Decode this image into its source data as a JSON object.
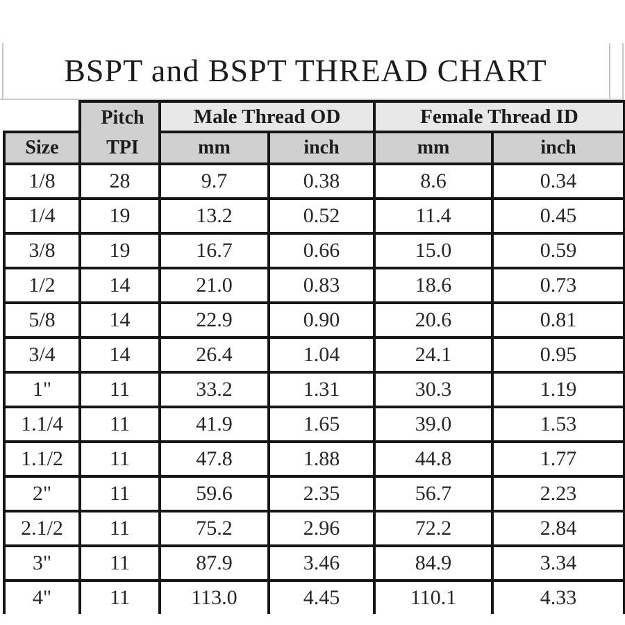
{
  "page": {
    "title": "BSPT and BSPT THREAD CHART"
  },
  "colors": {
    "table_border": "#161616",
    "group_header_bg": "#e7e7e7",
    "sub_header_bg": "#d0d0d0",
    "grid_remnant_gray": "#c6c6c6",
    "data_bg": "#ffffff"
  },
  "table": {
    "header": {
      "size_label": "Size",
      "pitch_line1": "Pitch",
      "pitch_line2": "TPI",
      "male_group": "Male Thread OD",
      "female_group": "Female Thread ID",
      "male_mm": "mm",
      "male_inch": "inch",
      "female_mm": "mm",
      "female_inch": "inch"
    },
    "rows": [
      {
        "size": "1/8",
        "tpi": "28",
        "male_mm": "9.7",
        "male_inch": "0.38",
        "female_mm": "8.6",
        "female_inch": "0.34"
      },
      {
        "size": "1/4",
        "tpi": "19",
        "male_mm": "13.2",
        "male_inch": "0.52",
        "female_mm": "11.4",
        "female_inch": "0.45"
      },
      {
        "size": "3/8",
        "tpi": "19",
        "male_mm": "16.7",
        "male_inch": "0.66",
        "female_mm": "15.0",
        "female_inch": "0.59"
      },
      {
        "size": "1/2",
        "tpi": "14",
        "male_mm": "21.0",
        "male_inch": "0.83",
        "female_mm": "18.6",
        "female_inch": "0.73"
      },
      {
        "size": "5/8",
        "tpi": "14",
        "male_mm": "22.9",
        "male_inch": "0.90",
        "female_mm": "20.6",
        "female_inch": "0.81"
      },
      {
        "size": "3/4",
        "tpi": "14",
        "male_mm": "26.4",
        "male_inch": "1.04",
        "female_mm": "24.1",
        "female_inch": "0.95"
      },
      {
        "size": "1\"",
        "tpi": "11",
        "male_mm": "33.2",
        "male_inch": "1.31",
        "female_mm": "30.3",
        "female_inch": "1.19"
      },
      {
        "size": "1.1/4",
        "tpi": "11",
        "male_mm": "41.9",
        "male_inch": "1.65",
        "female_mm": "39.0",
        "female_inch": "1.53"
      },
      {
        "size": "1.1/2",
        "tpi": "11",
        "male_mm": "47.8",
        "male_inch": "1.88",
        "female_mm": "44.8",
        "female_inch": "1.77"
      },
      {
        "size": "2\"",
        "tpi": "11",
        "male_mm": "59.6",
        "male_inch": "2.35",
        "female_mm": "56.7",
        "female_inch": "2.23"
      },
      {
        "size": "2.1/2",
        "tpi": "11",
        "male_mm": "75.2",
        "male_inch": "2.96",
        "female_mm": "72.2",
        "female_inch": "2.84"
      },
      {
        "size": "3\"",
        "tpi": "11",
        "male_mm": "87.9",
        "male_inch": "3.46",
        "female_mm": "84.9",
        "female_inch": "3.34"
      },
      {
        "size": "4\"",
        "tpi": "11",
        "male_mm": "113.0",
        "male_inch": "4.45",
        "female_mm": "110.1",
        "female_inch": "4.33"
      }
    ]
  },
  "chart_data": {
    "type": "table",
    "title": "BSPT and BSPT THREAD CHART",
    "columns": [
      "Size",
      "Pitch TPI",
      "Male Thread OD mm",
      "Male Thread OD inch",
      "Female Thread ID mm",
      "Female Thread ID inch"
    ],
    "rows": [
      [
        "1/8",
        "28",
        "9.7",
        "0.38",
        "8.6",
        "0.34"
      ],
      [
        "1/4",
        "19",
        "13.2",
        "0.52",
        "11.4",
        "0.45"
      ],
      [
        "3/8",
        "19",
        "16.7",
        "0.66",
        "15.0",
        "0.59"
      ],
      [
        "1/2",
        "14",
        "21.0",
        "0.83",
        "18.6",
        "0.73"
      ],
      [
        "5/8",
        "14",
        "22.9",
        "0.90",
        "20.6",
        "0.81"
      ],
      [
        "3/4",
        "14",
        "26.4",
        "1.04",
        "24.1",
        "0.95"
      ],
      [
        "1\"",
        "11",
        "33.2",
        "1.31",
        "30.3",
        "1.19"
      ],
      [
        "1.1/4",
        "11",
        "41.9",
        "1.65",
        "39.0",
        "1.53"
      ],
      [
        "1.1/2",
        "11",
        "47.8",
        "1.88",
        "44.8",
        "1.77"
      ],
      [
        "2\"",
        "11",
        "59.6",
        "2.35",
        "56.7",
        "2.23"
      ],
      [
        "2.1/2",
        "11",
        "75.2",
        "2.96",
        "72.2",
        "2.84"
      ],
      [
        "3\"",
        "11",
        "87.9",
        "3.46",
        "84.9",
        "3.34"
      ],
      [
        "4\"",
        "11",
        "113.0",
        "4.45",
        "110.1",
        "4.33"
      ]
    ],
    "layout": {
      "header_rows": 2,
      "merged_cells": [
        "Pitch TPI spans 2 header rows",
        "group headers span 2 columns"
      ],
      "grid": "on"
    }
  }
}
